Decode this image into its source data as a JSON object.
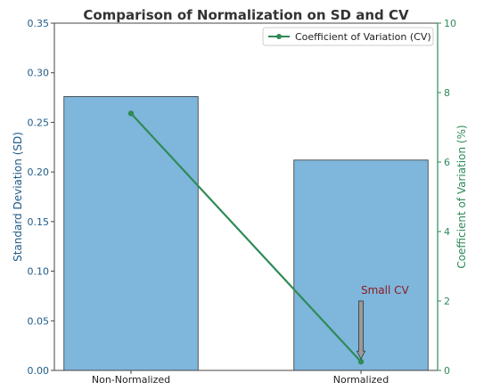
{
  "chart_data": {
    "type": "bar",
    "title": "Comparison of Normalization on SD and CV",
    "categories": [
      "Non-Normalized",
      "Normalized"
    ],
    "y_left": {
      "label": "Standard Deviation (SD)",
      "range": [
        0,
        0.35
      ],
      "ticks": [
        "0.00",
        "0.05",
        "0.10",
        "0.15",
        "0.20",
        "0.25",
        "0.30",
        "0.35"
      ],
      "color": "#1f5b88"
    },
    "y_right": {
      "label": "Coefficient of Variation (%)",
      "range": [
        0,
        10
      ],
      "ticks": [
        "0",
        "2",
        "4",
        "6",
        "8",
        "10"
      ],
      "color": "#2e8b57"
    },
    "series": [
      {
        "kind": "bar",
        "axis": "left",
        "values": [
          0.276,
          0.212
        ],
        "color": "#7fb6dc",
        "edge_color": "#333333"
      },
      {
        "kind": "line",
        "axis": "right",
        "name": "Coefficient of Variation (CV)",
        "values": [
          7.4,
          0.25
        ],
        "color": "#2e8b57"
      }
    ],
    "legend": {
      "position": "top-right",
      "entries": [
        "Coefficient of Variation (CV)"
      ]
    },
    "annotation": {
      "text": "Small CV",
      "color": "#8b1a1a",
      "category": "Normalized",
      "points_to_cv": 0.25,
      "text_at_cv": 2.0
    },
    "grid": false
  }
}
